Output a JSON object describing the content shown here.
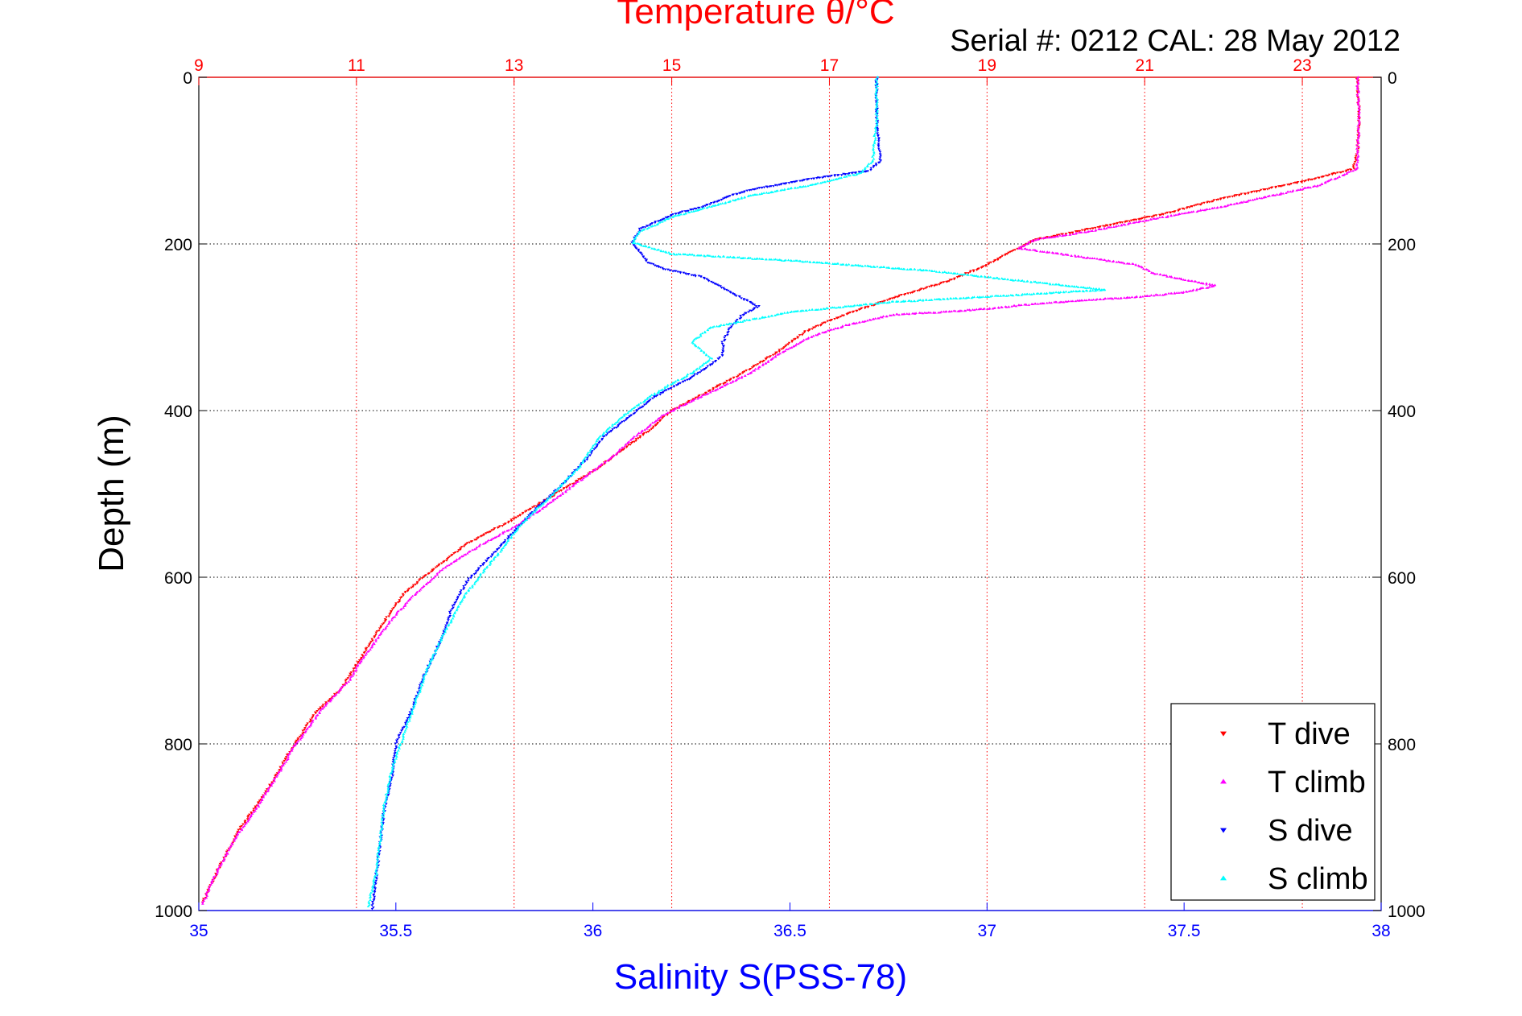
{
  "header": {
    "temperature_title": "Temperature θ/°C",
    "serial_cal": "Serial #: 0212  CAL: 28 May 2012"
  },
  "chart_data": {
    "type": "scatter",
    "title": "Temperature θ/°C",
    "subtitle": "Serial #: 0212  CAL: 28 May 2012",
    "ylabel": "Depth (m)",
    "xlabel_bottom": "Salinity S(PSS-78)",
    "xlabel_top": "Temperature θ/°C",
    "ylim": [
      0,
      1000
    ],
    "y_reversed": true,
    "xlim_salinity": [
      35,
      38
    ],
    "xlim_temperature": [
      9,
      24
    ],
    "y_ticks": [
      "0",
      "200",
      "400",
      "600",
      "800",
      "1000"
    ],
    "x_ticks_salinity": [
      "35",
      "35.5",
      "36",
      "36.5",
      "37",
      "37.5",
      "38"
    ],
    "x_ticks_temperature": [
      "9",
      "11",
      "13",
      "15",
      "17",
      "19",
      "21",
      "23"
    ],
    "grid": true,
    "legend_position": "bottom-right",
    "colors": {
      "temperature_axis": "#ff0000",
      "salinity_axis": "#0000ff",
      "grid_y": "#000000",
      "grid_x": "#ff0000"
    },
    "series": [
      {
        "name": "T dive",
        "axis": "temperature",
        "marker": "triangle-down",
        "color": "#ff0000",
        "points": [
          [
            23.7,
            0
          ],
          [
            23.72,
            50
          ],
          [
            23.7,
            90
          ],
          [
            23.65,
            110
          ],
          [
            23.0,
            125
          ],
          [
            22.0,
            145
          ],
          [
            21.2,
            165
          ],
          [
            20.4,
            180
          ],
          [
            19.6,
            195
          ],
          [
            19.3,
            210
          ],
          [
            19.0,
            225
          ],
          [
            18.5,
            245
          ],
          [
            17.9,
            262
          ],
          [
            17.4,
            278
          ],
          [
            17.0,
            292
          ],
          [
            16.7,
            305
          ],
          [
            16.3,
            332
          ],
          [
            15.8,
            360
          ],
          [
            15.4,
            380
          ],
          [
            15.0,
            400
          ],
          [
            14.7,
            425
          ],
          [
            14.4,
            445
          ],
          [
            14.05,
            470
          ],
          [
            13.7,
            490
          ],
          [
            13.35,
            510
          ],
          [
            12.9,
            535
          ],
          [
            12.4,
            560
          ],
          [
            11.85,
            600
          ],
          [
            11.6,
            620
          ],
          [
            11.3,
            660
          ],
          [
            11.0,
            705
          ],
          [
            10.8,
            735
          ],
          [
            10.5,
            760
          ],
          [
            10.15,
            810
          ],
          [
            10.0,
            835
          ],
          [
            9.8,
            865
          ],
          [
            9.5,
            905
          ],
          [
            9.25,
            950
          ],
          [
            9.05,
            990
          ]
        ]
      },
      {
        "name": "T climb",
        "axis": "temperature",
        "marker": "triangle-up",
        "color": "#ff00ff",
        "points": [
          [
            23.7,
            0
          ],
          [
            23.72,
            50
          ],
          [
            23.7,
            90
          ],
          [
            23.7,
            110
          ],
          [
            23.2,
            130
          ],
          [
            22.0,
            155
          ],
          [
            21.0,
            172
          ],
          [
            20.3,
            185
          ],
          [
            19.6,
            195
          ],
          [
            19.4,
            205
          ],
          [
            20.9,
            225
          ],
          [
            21.1,
            235
          ],
          [
            21.5,
            243
          ],
          [
            21.9,
            250
          ],
          [
            21.5,
            258
          ],
          [
            21.0,
            263
          ],
          [
            20.2,
            268
          ],
          [
            19.6,
            272
          ],
          [
            19.0,
            278
          ],
          [
            18.4,
            282
          ],
          [
            17.8,
            285
          ],
          [
            17.2,
            298
          ],
          [
            16.8,
            310
          ],
          [
            16.4,
            330
          ],
          [
            16.0,
            355
          ],
          [
            15.4,
            382
          ],
          [
            14.9,
            405
          ],
          [
            14.55,
            430
          ],
          [
            14.25,
            455
          ],
          [
            13.75,
            490
          ],
          [
            13.4,
            515
          ],
          [
            13.0,
            540
          ],
          [
            12.6,
            560
          ],
          [
            12.1,
            590
          ],
          [
            11.75,
            620
          ],
          [
            11.45,
            650
          ],
          [
            11.1,
            695
          ],
          [
            10.9,
            725
          ],
          [
            10.55,
            760
          ],
          [
            10.2,
            805
          ],
          [
            9.95,
            845
          ],
          [
            9.75,
            875
          ],
          [
            9.45,
            915
          ],
          [
            9.2,
            960
          ],
          [
            9.05,
            992
          ]
        ]
      },
      {
        "name": "S dive",
        "axis": "salinity",
        "marker": "triangle-down",
        "color": "#0000ff",
        "points": [
          [
            36.72,
            0
          ],
          [
            36.72,
            50
          ],
          [
            36.73,
            100
          ],
          [
            36.7,
            112
          ],
          [
            36.55,
            122
          ],
          [
            36.4,
            135
          ],
          [
            36.35,
            142
          ],
          [
            36.28,
            155
          ],
          [
            36.2,
            165
          ],
          [
            36.12,
            182
          ],
          [
            36.1,
            198
          ],
          [
            36.12,
            210
          ],
          [
            36.14,
            222
          ],
          [
            36.18,
            230
          ],
          [
            36.28,
            240
          ],
          [
            36.35,
            258
          ],
          [
            36.42,
            275
          ],
          [
            36.38,
            285
          ],
          [
            36.35,
            300
          ],
          [
            36.33,
            318
          ],
          [
            36.33,
            333
          ],
          [
            36.3,
            345
          ],
          [
            36.25,
            360
          ],
          [
            36.15,
            385
          ],
          [
            36.1,
            405
          ],
          [
            36.03,
            430
          ],
          [
            35.98,
            460
          ],
          [
            35.92,
            490
          ],
          [
            35.85,
            520
          ],
          [
            35.8,
            545
          ],
          [
            35.74,
            575
          ],
          [
            35.68,
            605
          ],
          [
            35.64,
            640
          ],
          [
            35.61,
            680
          ],
          [
            35.57,
            720
          ],
          [
            35.54,
            760
          ],
          [
            35.5,
            800
          ],
          [
            35.49,
            840
          ],
          [
            35.47,
            880
          ],
          [
            35.46,
            920
          ],
          [
            35.45,
            960
          ],
          [
            35.44,
            998
          ]
        ]
      },
      {
        "name": "S climb",
        "axis": "salinity",
        "marker": "triangle-up",
        "color": "#00ffff",
        "points": [
          [
            36.72,
            0
          ],
          [
            36.72,
            50
          ],
          [
            36.71,
            100
          ],
          [
            36.68,
            115
          ],
          [
            36.55,
            130
          ],
          [
            36.4,
            142
          ],
          [
            36.3,
            155
          ],
          [
            36.2,
            168
          ],
          [
            36.12,
            185
          ],
          [
            36.1,
            198
          ],
          [
            36.2,
            212
          ],
          [
            36.5,
            220
          ],
          [
            36.85,
            232
          ],
          [
            37.1,
            245
          ],
          [
            37.3,
            255
          ],
          [
            37.05,
            262
          ],
          [
            36.75,
            270
          ],
          [
            36.5,
            282
          ],
          [
            36.3,
            300
          ],
          [
            36.25,
            318
          ],
          [
            36.3,
            338
          ],
          [
            36.25,
            355
          ],
          [
            36.2,
            368
          ],
          [
            36.14,
            385
          ],
          [
            36.08,
            405
          ],
          [
            36.01,
            435
          ],
          [
            35.97,
            465
          ],
          [
            35.9,
            500
          ],
          [
            35.82,
            535
          ],
          [
            35.78,
            560
          ],
          [
            35.72,
            595
          ],
          [
            35.67,
            625
          ],
          [
            35.62,
            670
          ],
          [
            35.58,
            710
          ],
          [
            35.55,
            750
          ],
          [
            35.52,
            790
          ],
          [
            35.49,
            830
          ],
          [
            35.47,
            875
          ],
          [
            35.46,
            915
          ],
          [
            35.45,
            955
          ],
          [
            35.43,
            995
          ]
        ]
      }
    ]
  }
}
